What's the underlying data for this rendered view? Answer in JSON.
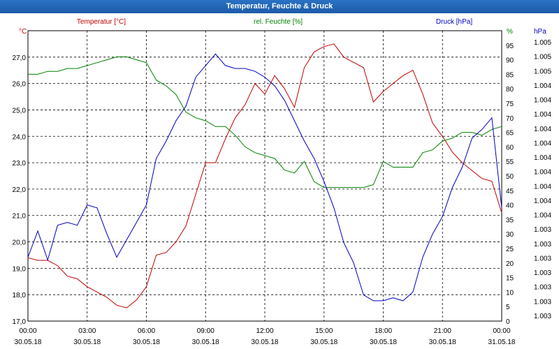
{
  "title": "Temperatur, Feuchte & Druck",
  "chart_data": {
    "type": "line",
    "title": "Temperatur, Feuchte & Druck",
    "x_ticks": [
      {
        "time": "00:00",
        "date": "30.05.18"
      },
      {
        "time": "03:00",
        "date": "30.05.18"
      },
      {
        "time": "06:00",
        "date": "30.05.18"
      },
      {
        "time": "09:00",
        "date": "30.05.18"
      },
      {
        "time": "12:00",
        "date": "30.05.18"
      },
      {
        "time": "15:00",
        "date": "30.05.18"
      },
      {
        "time": "18:00",
        "date": "30.05.18"
      },
      {
        "time": "21:00",
        "date": "30.05.18"
      },
      {
        "time": "00:00",
        "date": "31.05.18"
      }
    ],
    "x_unit": "hours",
    "xlim": [
      0,
      24
    ],
    "axes": {
      "temperature": {
        "label": "Temperatur [°C]",
        "unit": "°C",
        "color": "#c00000",
        "ylim": [
          17.0,
          28.0
        ],
        "ticks": [
          "17,0",
          "18,0",
          "19,0",
          "20,0",
          "21,0",
          "22,0",
          "23,0",
          "24,0",
          "25,0",
          "26,0",
          "27,0"
        ]
      },
      "humidity": {
        "label": "rel. Feuchte [%]",
        "unit": "%",
        "color": "#008000",
        "ylim": [
          0,
          100
        ],
        "ticks": [
          "0",
          "5",
          "10",
          "15",
          "20",
          "25",
          "30",
          "35",
          "40",
          "45",
          "50",
          "55",
          "60",
          "65",
          "70",
          "75",
          "80",
          "85",
          "90",
          "95"
        ]
      },
      "pressure": {
        "label": "Druck [hPa]",
        "unit": "hPa",
        "color": "#0000c0",
        "ticks": [
          "1.003",
          "1.003",
          "1.003",
          "1.003",
          "1.003",
          "1.003",
          "1.003",
          "1.004",
          "1.004",
          "1.004",
          "1.004",
          "1.004",
          "1.004",
          "1.004",
          "1.004",
          "1.004",
          "1.004",
          "1.005",
          "1.005",
          "1.005"
        ]
      }
    },
    "series": [
      {
        "name": "Temperatur [°C]",
        "axis": "temperature",
        "color": "#c00000",
        "x": [
          0,
          0.5,
          1,
          1.5,
          2,
          2.5,
          3,
          3.5,
          4,
          4.5,
          5,
          5.5,
          6,
          6.5,
          7,
          7.5,
          8,
          8.5,
          9,
          9.5,
          10,
          10.5,
          11,
          11.5,
          12,
          12.5,
          13,
          13.5,
          14,
          14.5,
          15,
          15.5,
          16,
          16.5,
          17,
          17.5,
          18,
          18.5,
          19,
          19.5,
          20,
          20.5,
          21,
          21.5,
          22,
          22.5,
          23,
          23.5,
          24
        ],
        "values": [
          19.4,
          19.3,
          19.3,
          19.1,
          18.7,
          18.6,
          18.3,
          18.1,
          17.9,
          17.6,
          17.5,
          17.8,
          18.3,
          19.5,
          19.6,
          20.0,
          20.6,
          21.8,
          23.0,
          23.0,
          23.9,
          24.7,
          25.2,
          26.0,
          25.6,
          26.3,
          25.8,
          25.1,
          26.6,
          27.2,
          27.4,
          27.5,
          27.0,
          26.8,
          26.6,
          25.3,
          25.7,
          26.0,
          26.3,
          26.5,
          25.6,
          24.5,
          24.0,
          23.4,
          23.0,
          22.7,
          22.4,
          22.3,
          21.1
        ]
      },
      {
        "name": "rel. Feuchte [%]",
        "axis": "humidity",
        "color": "#008000",
        "x": [
          0,
          0.5,
          1,
          1.5,
          2,
          2.5,
          3,
          3.5,
          4,
          4.5,
          5,
          5.5,
          6,
          6.5,
          7,
          7.5,
          8,
          8.5,
          9,
          9.5,
          10,
          10.5,
          11,
          11.5,
          12,
          12.5,
          13,
          13.5,
          14,
          14.5,
          15,
          15.5,
          16,
          16.5,
          17,
          17.5,
          18,
          18.5,
          19,
          19.5,
          20,
          20.5,
          21,
          21.5,
          22,
          22.5,
          23,
          23.5,
          24
        ],
        "values": [
          85,
          85,
          86,
          86,
          87,
          87,
          88,
          89,
          90,
          91,
          91,
          90,
          89,
          83,
          81,
          78,
          72,
          70,
          69,
          67,
          67,
          64,
          60,
          58,
          57,
          56,
          52,
          51,
          55,
          48,
          46,
          46,
          46,
          46,
          46,
          47,
          55,
          53,
          53,
          53,
          58,
          59,
          62,
          63,
          65,
          65,
          64,
          66,
          67
        ]
      },
      {
        "name": "Druck [hPa]",
        "axis": "pressure",
        "color": "#0000c0",
        "x": [
          0,
          0.5,
          1,
          1.5,
          2,
          2.5,
          3,
          3.5,
          4,
          4.5,
          5,
          5.5,
          6,
          6.5,
          7,
          7.5,
          8,
          8.5,
          9,
          9.5,
          10,
          10.5,
          11,
          11.5,
          12,
          12.5,
          13,
          13.5,
          14,
          14.5,
          15,
          15.5,
          16,
          16.5,
          17,
          17.5,
          18,
          18.5,
          19,
          19.5,
          20,
          20.5,
          21,
          21.5,
          22,
          22.5,
          23,
          23.5,
          24
        ],
        "values_as_percent_of_axis": [
          22,
          31,
          21,
          33,
          34,
          33,
          40,
          39,
          30,
          22,
          28,
          34,
          40,
          56,
          62,
          69,
          74,
          84,
          88,
          92,
          88,
          87,
          87,
          86,
          84,
          81,
          76,
          69,
          62,
          56,
          48,
          39,
          27,
          20,
          9,
          7,
          7,
          8,
          7,
          10,
          22,
          30,
          36,
          46,
          53,
          63,
          66,
          70,
          39
        ]
      }
    ],
    "grid": true,
    "legend_placement": "top"
  }
}
